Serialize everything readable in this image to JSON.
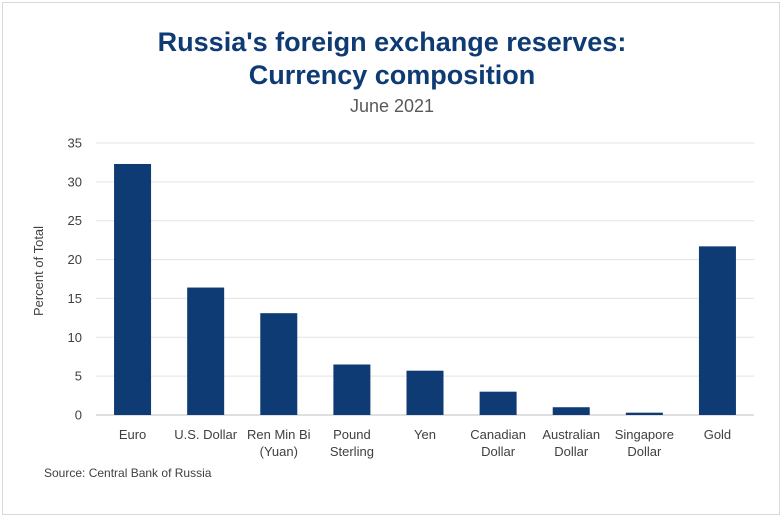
{
  "chart_data": {
    "type": "bar",
    "title_line1": "Russia's foreign exchange reserves:",
    "title_line2": "Currency composition",
    "subtitle": "June 2021",
    "ylabel": "Percent of Total",
    "xlabel": "",
    "ylim": [
      0,
      35
    ],
    "yticks": [
      0,
      5,
      10,
      15,
      20,
      25,
      30,
      35
    ],
    "grid": true,
    "legend": "none",
    "bar_color": "#0e3b74",
    "categories": [
      [
        "Euro"
      ],
      [
        "U.S. Dollar"
      ],
      [
        "Ren Min Bi",
        "(Yuan)"
      ],
      [
        "Pound",
        "Sterling"
      ],
      [
        "Yen"
      ],
      [
        "Canadian",
        "Dollar"
      ],
      [
        "Australian",
        "Dollar"
      ],
      [
        "Singapore",
        "Dollar"
      ],
      [
        "Gold"
      ]
    ],
    "values": [
      32.3,
      16.4,
      13.1,
      6.5,
      5.7,
      3.0,
      1.0,
      0.3,
      21.7
    ]
  },
  "source": "Source: Central Bank of Russia"
}
